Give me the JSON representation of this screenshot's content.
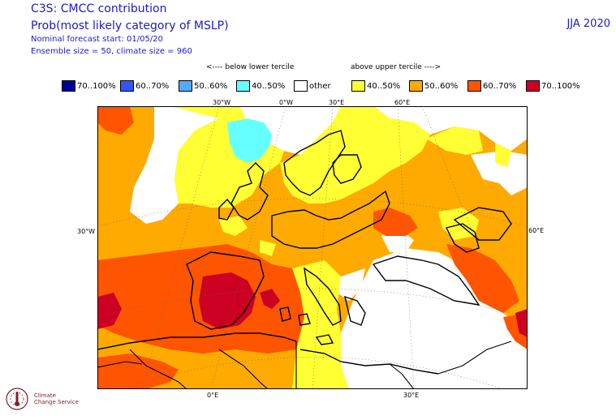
{
  "header": {
    "title": "C3S: CMCC contribution",
    "subtitle": "Prob(most likely category of MSLP)",
    "forecast_start": "Nominal forecast start: 01/05/20",
    "ensemble": "Ensemble size = 50, climate size = 960",
    "season": "JJA 2020"
  },
  "legend": {
    "below_label": "<---- below lower tercile",
    "above_label": "above upper tercile ---->",
    "items": [
      {
        "label": "70..100%",
        "color": "#000099"
      },
      {
        "label": "60..70%",
        "color": "#3355ff"
      },
      {
        "label": "50..60%",
        "color": "#55aaff"
      },
      {
        "label": "40..50%",
        "color": "#66ffff"
      },
      {
        "label": "other",
        "color": "#ffffff"
      },
      {
        "label": "40..50%",
        "color": "#ffff33"
      },
      {
        "label": "50..60%",
        "color": "#ffaa00"
      },
      {
        "label": "60..70%",
        "color": "#ff5500"
      },
      {
        "label": "70..100%",
        "color": "#cc0022"
      }
    ]
  },
  "axis_labels": {
    "top": [
      "30°W",
      "0°W",
      "30°E",
      "60°E"
    ],
    "left": "30°W",
    "right": "60°E",
    "bottom": [
      "0°E",
      "30°E"
    ]
  },
  "logo": {
    "text": "Climate\nChange Service"
  }
}
